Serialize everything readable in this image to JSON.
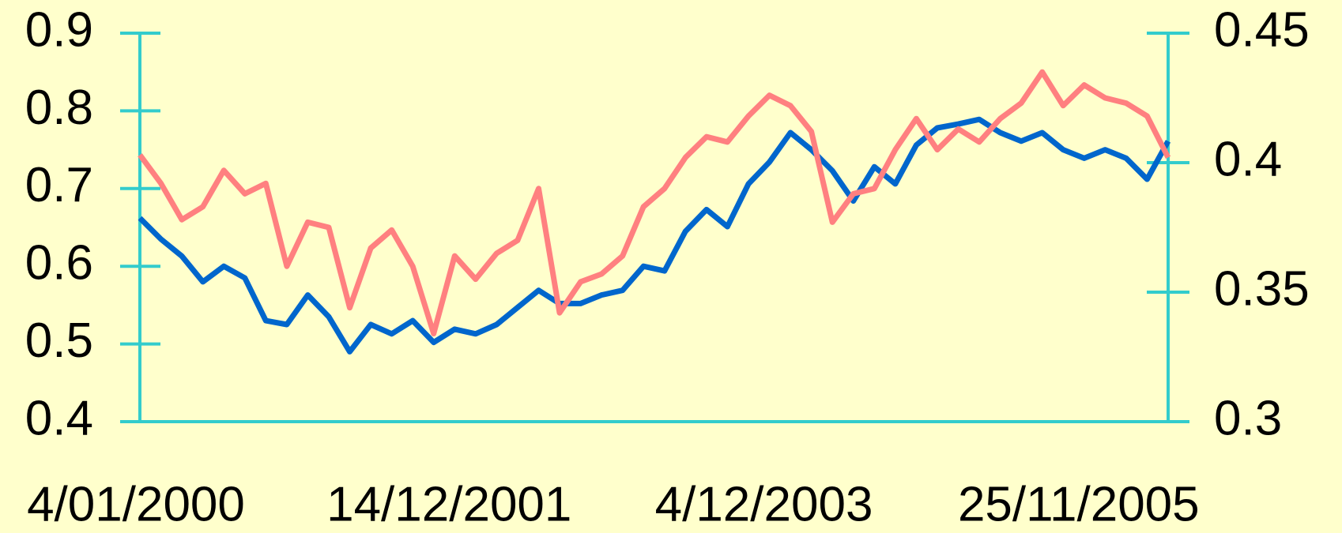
{
  "chart_data": {
    "type": "line",
    "categories": [
      "4/01/2000",
      null,
      null,
      null,
      null,
      null,
      null,
      null,
      null,
      null,
      null,
      null,
      null,
      null,
      null,
      "14/12/2001",
      null,
      null,
      null,
      null,
      null,
      null,
      null,
      null,
      null,
      null,
      null,
      null,
      null,
      null,
      "4/12/2003",
      null,
      null,
      null,
      null,
      null,
      null,
      null,
      null,
      null,
      null,
      null,
      null,
      null,
      null,
      "25/11/2005",
      null,
      null,
      null,
      null
    ],
    "series": [
      {
        "color": "#0066cc",
        "values": [
          0.662,
          0.635,
          0.613,
          0.58,
          0.6,
          0.585,
          0.53,
          0.525,
          0.563,
          0.535,
          0.49,
          0.525,
          0.513,
          0.53,
          0.502,
          0.519,
          0.513,
          0.525,
          0.547,
          0.569,
          0.552,
          0.552,
          0.563,
          0.569,
          0.6,
          0.594,
          0.645,
          0.673,
          0.651,
          0.706,
          0.734,
          0.772,
          0.75,
          0.723,
          0.684,
          0.728,
          0.706,
          0.756,
          0.778,
          0.783,
          0.789,
          0.772,
          0.761,
          0.772,
          0.75,
          0.739,
          0.75,
          0.739,
          0.712,
          0.761
        ]
      },
      {
        "color": "#ff8080",
        "axis": "y2",
        "values": [
          0.403,
          0.392,
          0.378,
          0.383,
          0.397,
          0.388,
          0.392,
          0.36,
          0.377,
          0.375,
          0.344,
          0.367,
          0.374,
          0.36,
          0.334,
          0.364,
          0.355,
          0.365,
          0.37,
          0.39,
          0.342,
          0.354,
          0.357,
          0.364,
          0.383,
          0.39,
          0.402,
          0.41,
          0.408,
          0.418,
          0.426,
          0.422,
          0.412,
          0.377,
          0.388,
          0.39,
          0.405,
          0.417,
          0.405,
          0.413,
          0.408,
          0.417,
          0.423,
          0.435,
          0.422,
          0.43,
          0.425,
          0.423,
          0.418,
          0.402
        ]
      }
    ],
    "ylim": [
      0.4,
      0.9
    ],
    "yticks": [
      0.4,
      0.5,
      0.6,
      0.7,
      0.8,
      0.9
    ],
    "y2lim": [
      0.3,
      0.45
    ],
    "y2ticks": [
      0.3,
      0.35,
      0.4,
      0.45
    ],
    "axis_color": "#33cccc"
  }
}
